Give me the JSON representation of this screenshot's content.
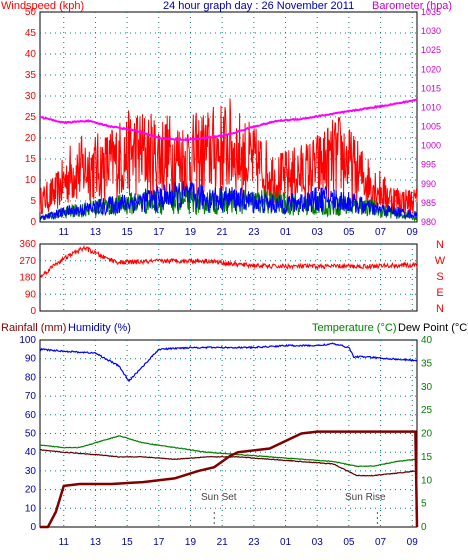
{
  "chart_data": [
    {
      "type": "line",
      "title": "24 hour graph day : 26 November 2011",
      "ylabel_left": "Windspeed (kph)",
      "ylabel_right": "Barometer (hpa)",
      "x_ticks": [
        "11",
        "13",
        "15",
        "17",
        "19",
        "21",
        "23",
        "01",
        "03",
        "05",
        "07",
        "09"
      ],
      "y_left_ticks": [
        0,
        5,
        10,
        15,
        20,
        25,
        30,
        35,
        40,
        45,
        50
      ],
      "y_left_range": [
        0,
        50
      ],
      "y_right_ticks": [
        980,
        985,
        990,
        995,
        1000,
        1005,
        1010,
        1015,
        1020,
        1025,
        1030,
        1035
      ],
      "y_right_range": [
        980,
        1035
      ],
      "grid": true,
      "series": [
        {
          "name": "Windspeed (kph)",
          "color": "#ff0000",
          "x": [
            9.5,
            10.5,
            11.5,
            12.5,
            13.5,
            14.5,
            15.5,
            16.5,
            17.5,
            18.5,
            19.5,
            20.5,
            21.5,
            22.5,
            23.5,
            24.5,
            25.5,
            26.5,
            27.5,
            28.5,
            29.5,
            30.5,
            31.5,
            32.5,
            33.3
          ],
          "values": [
            5,
            7,
            12,
            13,
            13,
            15,
            17,
            16,
            16,
            15,
            16,
            17,
            18,
            15,
            13,
            10,
            11,
            12,
            14,
            16,
            12,
            9,
            6,
            5,
            5
          ]
        },
        {
          "name": "Wind average",
          "color": "#0000ff",
          "x": [
            9.5,
            11,
            12.5,
            14,
            15.5,
            17,
            18.5,
            20,
            21.5,
            23,
            24.5,
            26,
            27.5,
            29,
            30.5,
            32,
            33.3
          ],
          "values": [
            1,
            3,
            4,
            5,
            6,
            7,
            8,
            7,
            7,
            6,
            5,
            6,
            7,
            6,
            4,
            3,
            2
          ]
        },
        {
          "name": "Wind gust band",
          "color": "#008000",
          "x": [
            9.5,
            12,
            14,
            16,
            18,
            20,
            22,
            24,
            26,
            28,
            30,
            32,
            33.3
          ],
          "values": [
            1,
            3,
            4,
            5,
            5,
            5,
            5,
            5,
            4,
            4,
            4,
            2,
            1
          ]
        },
        {
          "name": "Barometer (hpa)",
          "color": "#ff00ff",
          "x": [
            9.5,
            11,
            12.5,
            14,
            15.5,
            17,
            18.5,
            20,
            21.5,
            23,
            24.5,
            26,
            27.5,
            29,
            30.5,
            32,
            33.3
          ],
          "values": [
            1007.5,
            1006,
            1006.5,
            1005,
            1004,
            1002,
            1001.5,
            1002,
            1003,
            1005,
            1006.5,
            1007,
            1008,
            1009,
            1010,
            1011,
            1012
          ]
        }
      ]
    },
    {
      "type": "line",
      "ylabel_right": [
        "N",
        "W",
        "S",
        "E",
        "N"
      ],
      "y_ticks": [
        0,
        90,
        180,
        270,
        360
      ],
      "y_range": [
        0,
        360
      ],
      "series": [
        {
          "name": "Wind direction",
          "color": "#ff0000",
          "x": [
            9.5,
            10.5,
            11.5,
            12.3,
            13.5,
            14.5,
            16,
            18,
            20,
            22,
            24,
            26,
            28,
            30,
            32,
            33.3
          ],
          "values": [
            180,
            255,
            305,
            340,
            290,
            260,
            265,
            270,
            270,
            250,
            240,
            240,
            240,
            240,
            245,
            245
          ]
        }
      ]
    },
    {
      "type": "line",
      "ylabel_left": [
        "Rainfall (mm)",
        "Humidity (%)"
      ],
      "ylabel_right": [
        "Temperature (°C)",
        "Dew Point (°C)"
      ],
      "x_ticks": [
        "11",
        "13",
        "15",
        "17",
        "19",
        "21",
        "23",
        "01",
        "03",
        "05",
        "07",
        "09"
      ],
      "y_left_ticks": [
        0,
        10,
        20,
        30,
        40,
        50,
        60,
        70,
        80,
        90,
        100
      ],
      "y_left_range": [
        0,
        100
      ],
      "y_right_ticks": [
        0,
        5,
        10,
        15,
        20,
        25,
        30,
        35,
        40
      ],
      "y_right_range": [
        0,
        40
      ],
      "annotations": [
        "Sun Set",
        "Sun Rise"
      ],
      "series": [
        {
          "name": "Humidity (%)",
          "color": "#0000ff",
          "x": [
            9.5,
            11,
            13,
            14.5,
            15.1,
            16,
            17,
            19,
            21,
            23,
            25,
            27,
            28,
            29,
            29.3,
            30,
            31.5,
            33.3
          ],
          "values": [
            95,
            94,
            93,
            86,
            78,
            86,
            95,
            96,
            96,
            96,
            97,
            97,
            98,
            96,
            91,
            91,
            90,
            89
          ]
        },
        {
          "name": "Rainfall (mm)",
          "color": "#800000",
          "x": [
            9.5,
            10,
            10.5,
            11,
            12,
            14,
            16,
            18,
            19.5,
            20.5,
            21.5,
            22,
            24,
            25,
            26,
            27,
            28,
            29,
            30,
            31,
            32,
            33.2,
            33.3
          ],
          "values": [
            0,
            0,
            8,
            22,
            23,
            23,
            24,
            26,
            30,
            32,
            38,
            40,
            42,
            46,
            50,
            51,
            51,
            51,
            51,
            51,
            51,
            51,
            0
          ]
        },
        {
          "name": "Temperature (°C)",
          "color": "#008000",
          "x": [
            9.5,
            11,
            12,
            13.5,
            14.5,
            16,
            18,
            20,
            22,
            24,
            26,
            28,
            29.5,
            30.5,
            32,
            33.3
          ],
          "values": [
            17.5,
            17,
            17,
            18.5,
            19.5,
            18,
            17,
            16,
            15.5,
            15,
            14.5,
            14,
            13,
            13,
            14,
            14.5
          ]
        },
        {
          "name": "Dew Point (°C)",
          "color": "#600000",
          "x": [
            9.5,
            11,
            13,
            14.5,
            16,
            18,
            20,
            22,
            24,
            26,
            28,
            29.5,
            30.5,
            32,
            33.3
          ],
          "values": [
            16.5,
            16,
            15.5,
            15,
            15,
            14.5,
            15,
            15,
            14.5,
            14,
            13.5,
            11,
            11,
            11.5,
            12
          ]
        }
      ]
    }
  ]
}
